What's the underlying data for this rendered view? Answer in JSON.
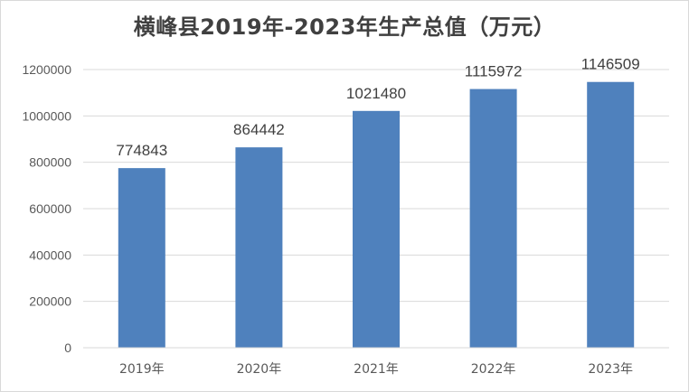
{
  "chart_data": {
    "type": "bar",
    "title": "横峰县2019年-2023年生产总值（万元）",
    "xlabel": "",
    "ylabel": "",
    "categories": [
      "2019年",
      "2020年",
      "2021年",
      "2022年",
      "2023年"
    ],
    "values": [
      774843,
      864442,
      1021480,
      1115972,
      1146509
    ],
    "ylim": [
      0,
      1200000
    ],
    "yticks": [
      0,
      200000,
      400000,
      600000,
      800000,
      1000000,
      1200000
    ],
    "grid": true,
    "legend": "none",
    "bar_color": "#4f81bd",
    "grid_color": "#d9d9d9"
  }
}
